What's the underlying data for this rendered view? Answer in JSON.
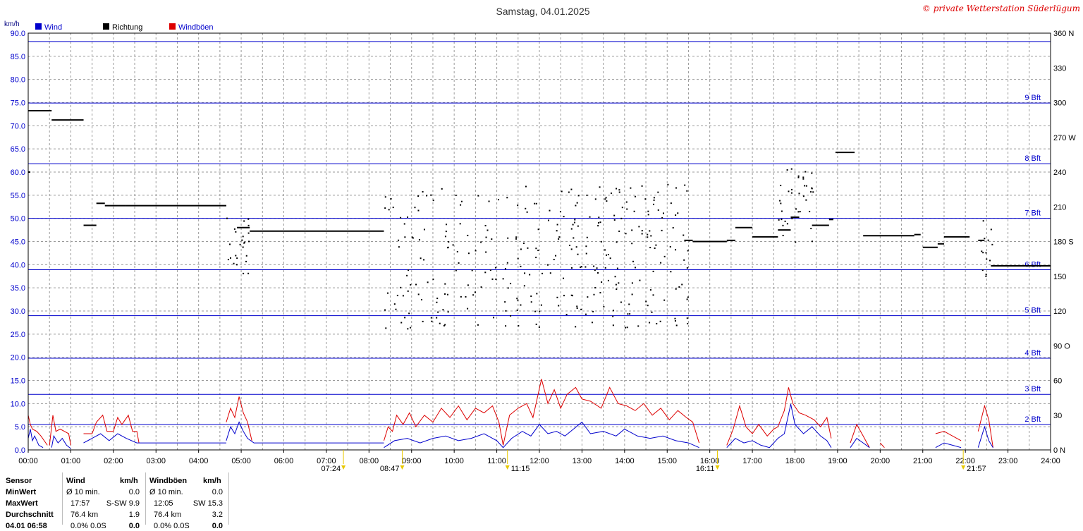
{
  "header": {
    "title": "Samstag, 04.01.2025",
    "copyright": "© private Wetterstation Süderlügum",
    "left_unit": "km/h",
    "legend": [
      {
        "label": "Wind",
        "color": "#0000cc"
      },
      {
        "label": "Richtung",
        "color": "#000000"
      },
      {
        "label": "Windböen",
        "color": "#dd0000"
      }
    ]
  },
  "chart_data": {
    "type": "line",
    "title": "Samstag, 04.01.2025",
    "xlabel": "",
    "ylabel": "km/h",
    "x_ticks": [
      "00:00",
      "01:00",
      "02:00",
      "03:00",
      "04:00",
      "05:00",
      "06:00",
      "07:00",
      "08:00",
      "09:00",
      "10:00",
      "11:00",
      "12:00",
      "13:00",
      "14:00",
      "15:00",
      "16:00",
      "17:00",
      "18:00",
      "19:00",
      "20:00",
      "21:00",
      "22:00",
      "23:00",
      "24:00"
    ],
    "xlim_hours": [
      0,
      24
    ],
    "ylim": [
      0,
      90
    ],
    "y_ticks": [
      "0.0",
      "5.0",
      "10.0",
      "15.0",
      "20.0",
      "25.0",
      "30.0",
      "35.0",
      "40.0",
      "45.0",
      "50.0",
      "55.0",
      "60.0",
      "65.0",
      "70.0",
      "75.0",
      "80.0",
      "85.0",
      "90.0"
    ],
    "y2lim": [
      0,
      360
    ],
    "y2_ticks": [
      {
        "v": 0,
        "label": "0   N"
      },
      {
        "v": 30,
        "label": "30"
      },
      {
        "v": 60,
        "label": "60"
      },
      {
        "v": 90,
        "label": "90   O"
      },
      {
        "v": 120,
        "label": "120"
      },
      {
        "v": 150,
        "label": "150"
      },
      {
        "v": 180,
        "label": "180   S"
      },
      {
        "v": 210,
        "label": "210"
      },
      {
        "v": 240,
        "label": "240"
      },
      {
        "v": 270,
        "label": "270   W"
      },
      {
        "v": 300,
        "label": "300"
      },
      {
        "v": 330,
        "label": "330"
      },
      {
        "v": 360,
        "label": "360   N"
      }
    ],
    "beaufort": [
      {
        "v": 5.5,
        "label": "2 Bft"
      },
      {
        "v": 12.0,
        "label": "3 Bft"
      },
      {
        "v": 19.8,
        "label": "4 Bft"
      },
      {
        "v": 29.0,
        "label": "5 Bft"
      },
      {
        "v": 38.9,
        "label": "6 Bft"
      },
      {
        "v": 50.0,
        "label": "7 Bft"
      },
      {
        "v": 61.8,
        "label": "8 Bft"
      },
      {
        "v": 74.9,
        "label": "9 Bft"
      },
      {
        "v": 88.2,
        "label": ""
      }
    ],
    "grid": true,
    "series": [
      {
        "name": "Wind",
        "color": "#0000cc",
        "segments": [
          [
            [
              0.0,
              2.5
            ],
            [
              0.05,
              4.5
            ],
            [
              0.1,
              2.0
            ],
            [
              0.15,
              3.0
            ],
            [
              0.25,
              1.0
            ],
            [
              0.35,
              0.5
            ]
          ],
          [
            [
              0.55,
              0.5
            ],
            [
              0.6,
              3.0
            ],
            [
              0.7,
              1.5
            ],
            [
              0.8,
              2.5
            ],
            [
              0.9,
              1.0
            ],
            [
              1.0,
              0.3
            ]
          ],
          [
            [
              1.3,
              1.5
            ],
            [
              1.5,
              2.5
            ],
            [
              1.7,
              3.5
            ],
            [
              1.9,
              2.0
            ],
            [
              2.1,
              3.5
            ],
            [
              2.3,
              2.5
            ],
            [
              2.55,
              1.5
            ],
            [
              3.0,
              1.5
            ],
            [
              3.5,
              1.5
            ],
            [
              4.0,
              1.5
            ],
            [
              4.65,
              1.5
            ]
          ],
          [
            [
              4.65,
              2.0
            ],
            [
              4.75,
              5.0
            ],
            [
              4.85,
              3.5
            ],
            [
              4.95,
              6.0
            ],
            [
              5.05,
              4.0
            ],
            [
              5.15,
              2.5
            ],
            [
              5.3,
              1.5
            ],
            [
              6.0,
              1.5
            ],
            [
              7.0,
              1.5
            ],
            [
              8.35,
              1.5
            ]
          ],
          [
            [
              8.35,
              0.5
            ],
            [
              8.6,
              2.0
            ],
            [
              8.9,
              2.5
            ],
            [
              9.2,
              1.5
            ],
            [
              9.5,
              2.5
            ],
            [
              9.8,
              3.0
            ],
            [
              10.1,
              2.0
            ],
            [
              10.4,
              2.5
            ],
            [
              10.7,
              3.5
            ],
            [
              11.0,
              2.0
            ],
            [
              11.15,
              0.5
            ],
            [
              11.35,
              2.5
            ],
            [
              11.6,
              4.0
            ],
            [
              11.8,
              3.0
            ],
            [
              12.0,
              5.5
            ],
            [
              12.2,
              3.5
            ],
            [
              12.4,
              4.0
            ],
            [
              12.6,
              3.0
            ],
            [
              12.8,
              4.5
            ],
            [
              13.0,
              6.0
            ],
            [
              13.2,
              3.5
            ],
            [
              13.5,
              4.0
            ],
            [
              13.8,
              3.0
            ],
            [
              14.0,
              4.5
            ],
            [
              14.3,
              3.0
            ],
            [
              14.6,
              2.5
            ],
            [
              14.9,
              3.0
            ],
            [
              15.2,
              2.0
            ],
            [
              15.5,
              1.5
            ],
            [
              15.75,
              0.5
            ]
          ],
          [
            [
              16.4,
              0.5
            ],
            [
              16.6,
              2.5
            ],
            [
              16.8,
              1.5
            ],
            [
              17.0,
              2.0
            ],
            [
              17.2,
              1.0
            ],
            [
              17.4,
              0.5
            ],
            [
              17.6,
              2.5
            ],
            [
              17.75,
              3.5
            ],
            [
              17.9,
              9.9
            ],
            [
              18.0,
              5.5
            ],
            [
              18.2,
              3.5
            ],
            [
              18.4,
              5.0
            ],
            [
              18.6,
              3.0
            ],
            [
              18.75,
              2.0
            ],
            [
              18.85,
              0.5
            ]
          ],
          [
            [
              19.3,
              0.5
            ],
            [
              19.45,
              2.5
            ],
            [
              19.6,
              1.5
            ],
            [
              19.75,
              0.5
            ]
          ],
          [
            [
              21.3,
              0.5
            ],
            [
              21.5,
              1.5
            ],
            [
              21.7,
              1.0
            ],
            [
              21.9,
              0.5
            ]
          ],
          [
            [
              22.3,
              0.5
            ],
            [
              22.45,
              5.0
            ],
            [
              22.55,
              2.0
            ],
            [
              22.65,
              0.5
            ]
          ]
        ]
      },
      {
        "name": "Windböen",
        "color": "#dd0000",
        "segments": [
          [
            [
              0.0,
              7.5
            ],
            [
              0.05,
              5.5
            ],
            [
              0.1,
              4.5
            ],
            [
              0.2,
              4.0
            ],
            [
              0.3,
              3.0
            ],
            [
              0.45,
              1.0
            ]
          ],
          [
            [
              0.5,
              1.0
            ],
            [
              0.58,
              7.5
            ],
            [
              0.65,
              4.0
            ],
            [
              0.75,
              4.5
            ],
            [
              0.85,
              4.0
            ],
            [
              0.95,
              3.5
            ],
            [
              1.0,
              1.0
            ]
          ],
          [
            [
              1.3,
              3.5
            ],
            [
              1.5,
              3.5
            ],
            [
              1.6,
              6.0
            ],
            [
              1.75,
              7.5
            ],
            [
              1.85,
              4.0
            ],
            [
              2.0,
              4.0
            ],
            [
              2.1,
              7.0
            ],
            [
              2.2,
              5.5
            ],
            [
              2.35,
              7.5
            ],
            [
              2.45,
              4.0
            ],
            [
              2.55,
              4.0
            ],
            [
              2.6,
              1.5
            ]
          ],
          [
            [
              4.65,
              6.0
            ],
            [
              4.75,
              9.0
            ],
            [
              4.85,
              7.0
            ],
            [
              4.95,
              11.5
            ],
            [
              5.05,
              8.0
            ],
            [
              5.15,
              6.0
            ],
            [
              5.25,
              2.0
            ]
          ],
          [
            [
              8.35,
              2.0
            ],
            [
              8.45,
              5.0
            ],
            [
              8.55,
              4.0
            ],
            [
              8.65,
              7.5
            ],
            [
              8.8,
              5.5
            ],
            [
              8.95,
              8.0
            ],
            [
              9.1,
              5.0
            ],
            [
              9.3,
              7.5
            ],
            [
              9.5,
              6.0
            ],
            [
              9.7,
              9.0
            ],
            [
              9.9,
              7.0
            ],
            [
              10.1,
              9.5
            ],
            [
              10.3,
              6.5
            ],
            [
              10.5,
              9.0
            ],
            [
              10.7,
              8.0
            ],
            [
              10.9,
              9.5
            ],
            [
              11.05,
              6.0
            ],
            [
              11.15,
              1.0
            ],
            [
              11.3,
              7.5
            ],
            [
              11.5,
              9.0
            ],
            [
              11.7,
              10.0
            ],
            [
              11.85,
              7.0
            ],
            [
              12.05,
              15.3
            ],
            [
              12.2,
              10.0
            ],
            [
              12.35,
              13.0
            ],
            [
              12.5,
              9.0
            ],
            [
              12.65,
              12.0
            ],
            [
              12.85,
              13.5
            ],
            [
              13.0,
              11.0
            ],
            [
              13.2,
              10.5
            ],
            [
              13.45,
              9.0
            ],
            [
              13.65,
              13.5
            ],
            [
              13.85,
              10.0
            ],
            [
              14.05,
              9.5
            ],
            [
              14.25,
              8.5
            ],
            [
              14.45,
              10.0
            ],
            [
              14.65,
              7.5
            ],
            [
              14.85,
              9.0
            ],
            [
              15.05,
              6.5
            ],
            [
              15.25,
              8.5
            ],
            [
              15.45,
              7.0
            ],
            [
              15.6,
              6.0
            ],
            [
              15.75,
              1.5
            ]
          ],
          [
            [
              16.4,
              1.0
            ],
            [
              16.55,
              4.5
            ],
            [
              16.7,
              9.5
            ],
            [
              16.85,
              5.0
            ],
            [
              17.0,
              3.5
            ],
            [
              17.15,
              5.5
            ],
            [
              17.35,
              3.0
            ],
            [
              17.5,
              4.5
            ],
            [
              17.6,
              5.0
            ],
            [
              17.75,
              8.5
            ],
            [
              17.85,
              13.5
            ],
            [
              17.95,
              10.0
            ],
            [
              18.1,
              8.0
            ],
            [
              18.25,
              7.5
            ],
            [
              18.45,
              6.5
            ],
            [
              18.6,
              5.0
            ],
            [
              18.75,
              7.0
            ],
            [
              18.85,
              2.5
            ]
          ],
          [
            [
              19.3,
              1.5
            ],
            [
              19.45,
              5.5
            ],
            [
              19.6,
              3.0
            ],
            [
              19.75,
              0.5
            ]
          ],
          [
            [
              20.0,
              1.5
            ],
            [
              20.1,
              0.5
            ]
          ],
          [
            [
              21.3,
              3.5
            ],
            [
              21.5,
              4.0
            ],
            [
              21.7,
              3.0
            ],
            [
              21.9,
              2.0
            ]
          ],
          [
            [
              22.3,
              4.0
            ],
            [
              22.45,
              9.5
            ],
            [
              22.55,
              6.5
            ],
            [
              22.65,
              0.5
            ]
          ]
        ]
      }
    ],
    "richtung": {
      "name": "Richtung",
      "color": "#000000",
      "axis": "right",
      "runs": [
        [
          0.0,
          0.05,
          240
        ],
        [
          0.0,
          0.55,
          293
        ],
        [
          0.55,
          1.3,
          285
        ],
        [
          1.3,
          1.6,
          194
        ],
        [
          1.6,
          1.8,
          213
        ],
        [
          1.8,
          2.3,
          211
        ],
        [
          2.3,
          4.65,
          211
        ],
        [
          4.9,
          5.2,
          192
        ],
        [
          5.2,
          8.35,
          189
        ],
        [
          15.4,
          15.6,
          181
        ],
        [
          15.6,
          16.4,
          180
        ],
        [
          16.4,
          16.6,
          181
        ],
        [
          16.6,
          17.0,
          192
        ],
        [
          17.0,
          17.6,
          184
        ],
        [
          17.6,
          17.9,
          190
        ],
        [
          17.9,
          18.1,
          201
        ],
        [
          18.4,
          18.8,
          194
        ],
        [
          18.8,
          18.9,
          199
        ],
        [
          18.95,
          19.4,
          257
        ],
        [
          19.6,
          20.8,
          185
        ],
        [
          20.8,
          20.95,
          186
        ],
        [
          21.0,
          21.35,
          175
        ],
        [
          21.35,
          21.5,
          178
        ],
        [
          21.5,
          22.1,
          184
        ],
        [
          22.3,
          22.45,
          181
        ],
        [
          22.6,
          24.0,
          159
        ]
      ]
    }
  },
  "sun_markers": [
    {
      "hour": 7.4,
      "label": "07:24"
    },
    {
      "hour": 8.78,
      "label": "08:47"
    },
    {
      "hour": 11.25,
      "label": "11:15"
    },
    {
      "hour": 16.18,
      "label": "16:11"
    },
    {
      "hour": 21.95,
      "label": "21:57"
    }
  ],
  "stats": {
    "h_sensor": "Sensor",
    "h_wind": "Wind",
    "h_kmh1": "km/h",
    "h_boeen": "Windböen",
    "h_kmh2": "km/h",
    "r1_label": "MinWert",
    "r1_w_desc": "Ø 10 min.",
    "r1_w_val": "0.0",
    "r1_g_desc": "Ø 10 min.",
    "r1_g_val": "0.0",
    "r2_label": "MaxWert",
    "r2_w_time": "17:57",
    "r2_w_val": "S-SW 9.9",
    "r2_g_time": "12:05",
    "r2_g_val": "SW 15.3",
    "r3_label": "Durchschnitt",
    "r3_w_desc": "76.4 km",
    "r3_w_val": "1.9",
    "r3_g_desc": "76.4 km",
    "r3_g_val": "3.2",
    "r4_label": "04.01 06:58",
    "r4_w_desc": "0.0% 0.0S",
    "r4_w_val": "0.0",
    "r4_g_desc": "0.0% 0.0S",
    "r4_g_val": "0.0"
  }
}
